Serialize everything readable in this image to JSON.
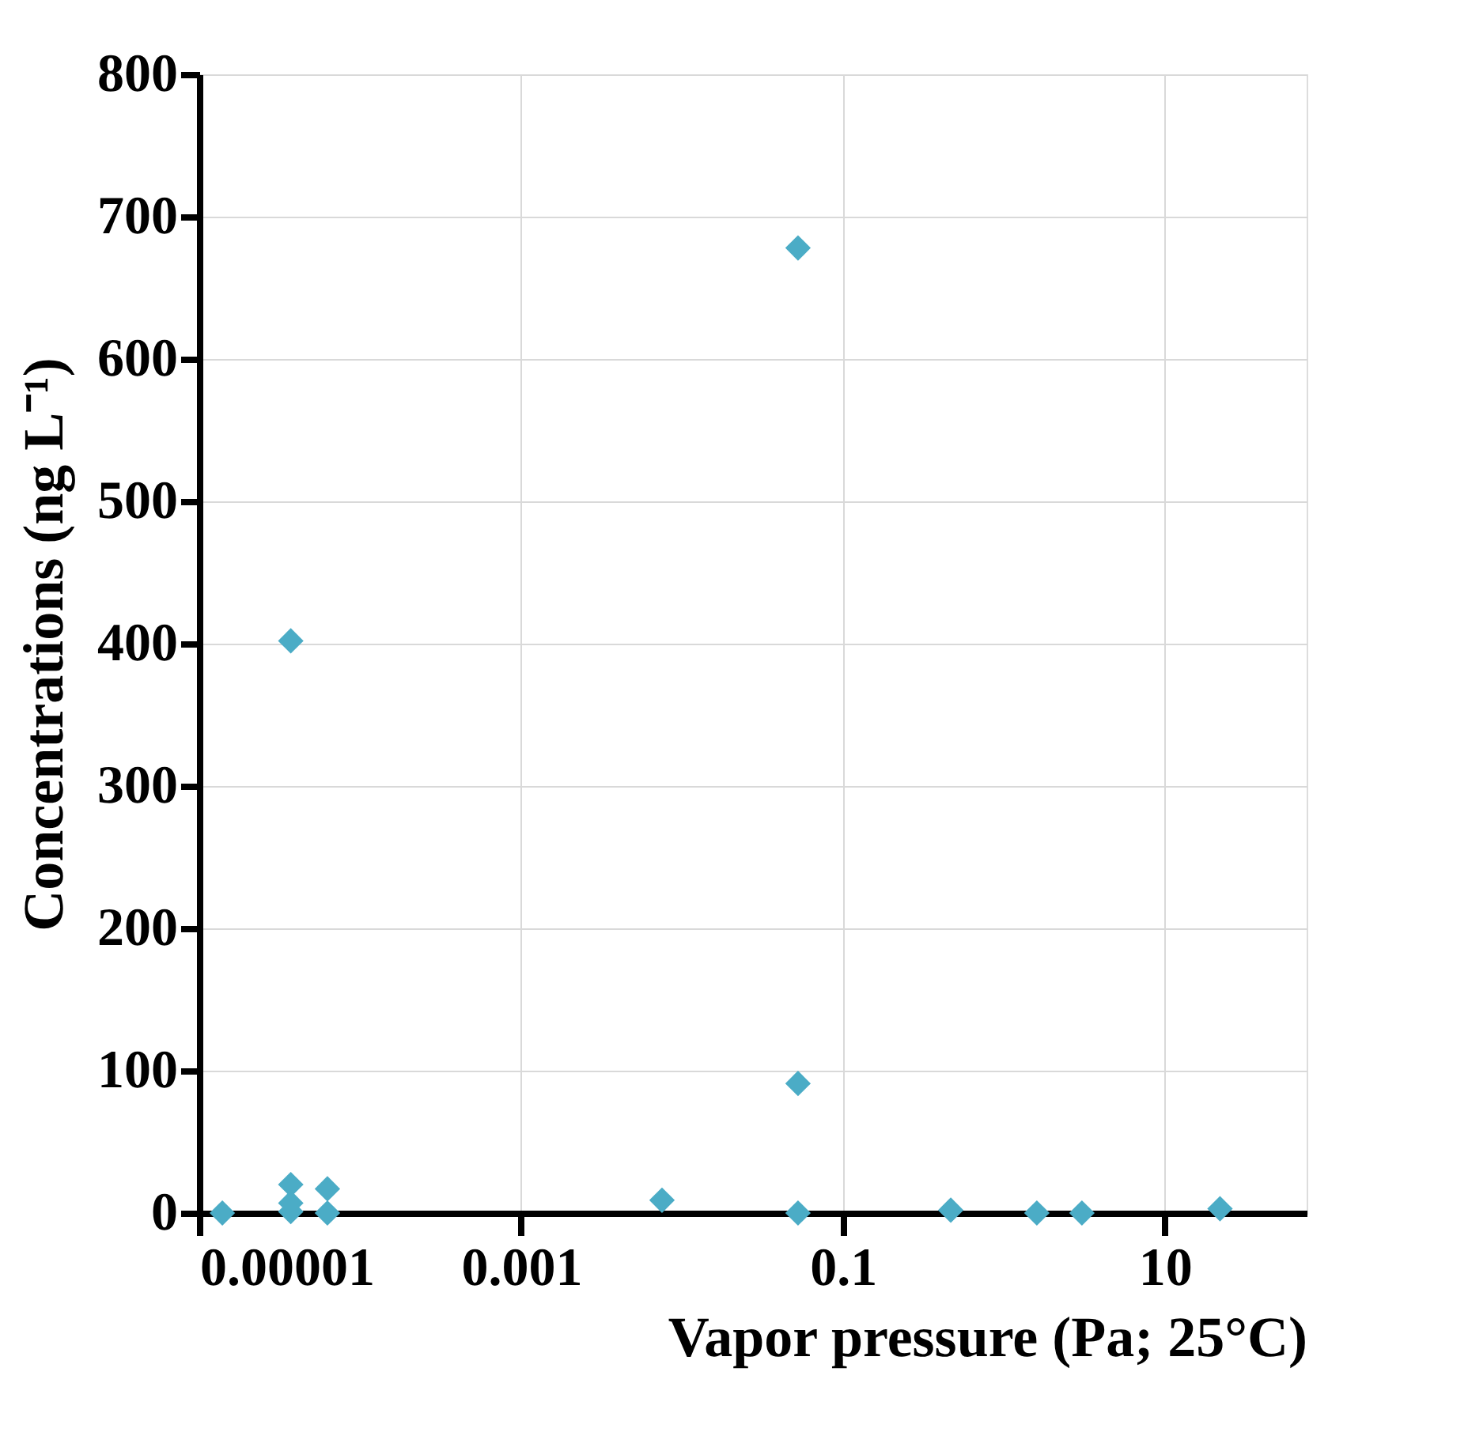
{
  "chart_data": {
    "type": "scatter",
    "xlabel": "Vapor pressure (Pa; 25°C)",
    "ylabel": "Concentrations (ng L⁻¹)",
    "log": "x",
    "xlim": [
      1e-05,
      76
    ],
    "xticks": [
      {
        "value": 1e-05,
        "label": "0.00001"
      },
      {
        "value": 0.001,
        "label": "0.001"
      },
      0.1,
      10
    ],
    "ylim": [
      0,
      800
    ],
    "yticks": [
      0,
      100,
      200,
      300,
      400,
      500,
      600,
      700,
      800
    ],
    "grid": true,
    "marker": "diamond",
    "series": [
      {
        "color": "#4bacc6",
        "x": [
          1.39e-05,
          3.7e-05,
          3.7e-05,
          3.7e-05,
          3.7e-05,
          6.25e-05,
          6.25e-05,
          0.0075,
          0.0525,
          0.0525,
          0.0525,
          0.467,
          1.6,
          3.05,
          22
        ],
        "values": [
          0,
          402,
          20,
          7,
          1,
          17,
          0,
          9,
          678,
          91,
          0,
          2,
          0,
          0,
          3
        ]
      }
    ]
  }
}
